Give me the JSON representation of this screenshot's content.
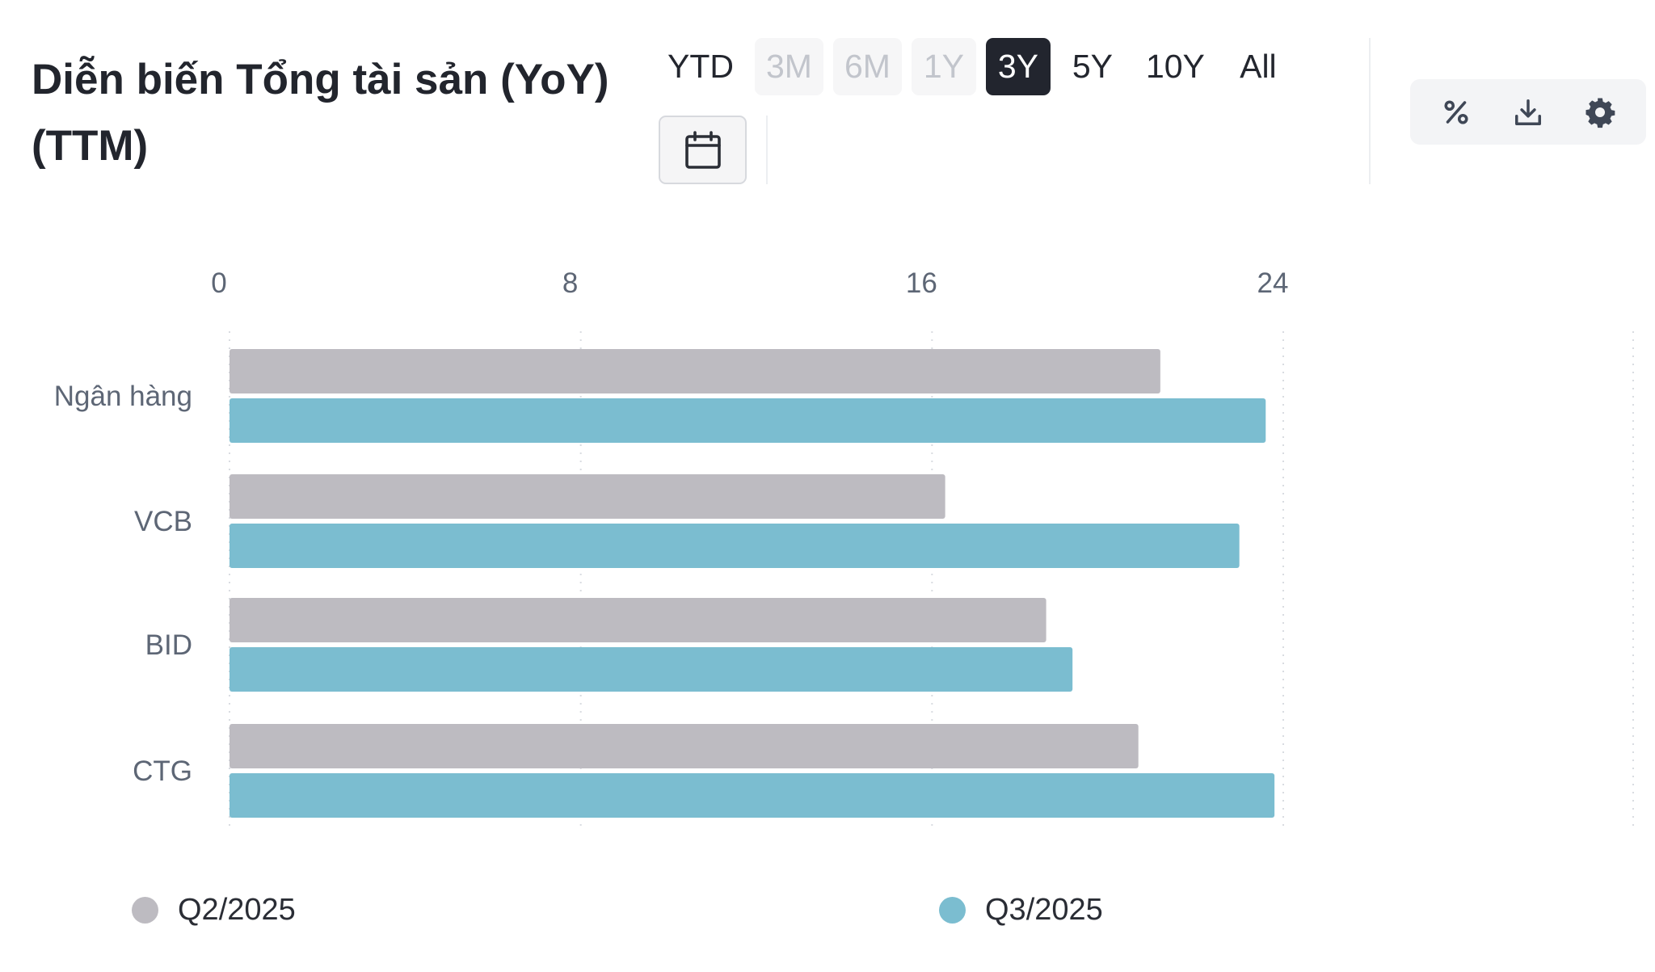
{
  "header": {
    "title": "Diễn biến Tổng tài sản (YoY) (TTM)"
  },
  "ranges": [
    {
      "label": "YTD",
      "state": "normal"
    },
    {
      "label": "3M",
      "state": "disabled"
    },
    {
      "label": "6M",
      "state": "disabled"
    },
    {
      "label": "1Y",
      "state": "disabled"
    },
    {
      "label": "3Y",
      "state": "active"
    },
    {
      "label": "5Y",
      "state": "normal"
    },
    {
      "label": "10Y",
      "state": "normal"
    },
    {
      "label": "All",
      "state": "normal"
    }
  ],
  "toolbar": {
    "icons": [
      "calendar-icon",
      "percent-icon",
      "download-icon",
      "gear-icon"
    ]
  },
  "colors": {
    "q2": "#bdbbc1",
    "q3": "#7bbdd0",
    "active_range": "#22252e",
    "axis_text": "#5d6675"
  },
  "chart_data": {
    "type": "bar",
    "orientation": "horizontal",
    "categories": [
      "Ngân hàng",
      "VCB",
      "BID",
      "CTG"
    ],
    "series": [
      {
        "name": "Q2/2025",
        "values": [
          21.2,
          16.3,
          18.6,
          20.7
        ]
      },
      {
        "name": "Q3/2025",
        "values": [
          23.6,
          23.0,
          19.2,
          23.8
        ]
      }
    ],
    "x_ticks": [
      0,
      8,
      16,
      24
    ],
    "xlim": [
      0,
      24
    ],
    "grid": true,
    "legend": "bottom"
  }
}
